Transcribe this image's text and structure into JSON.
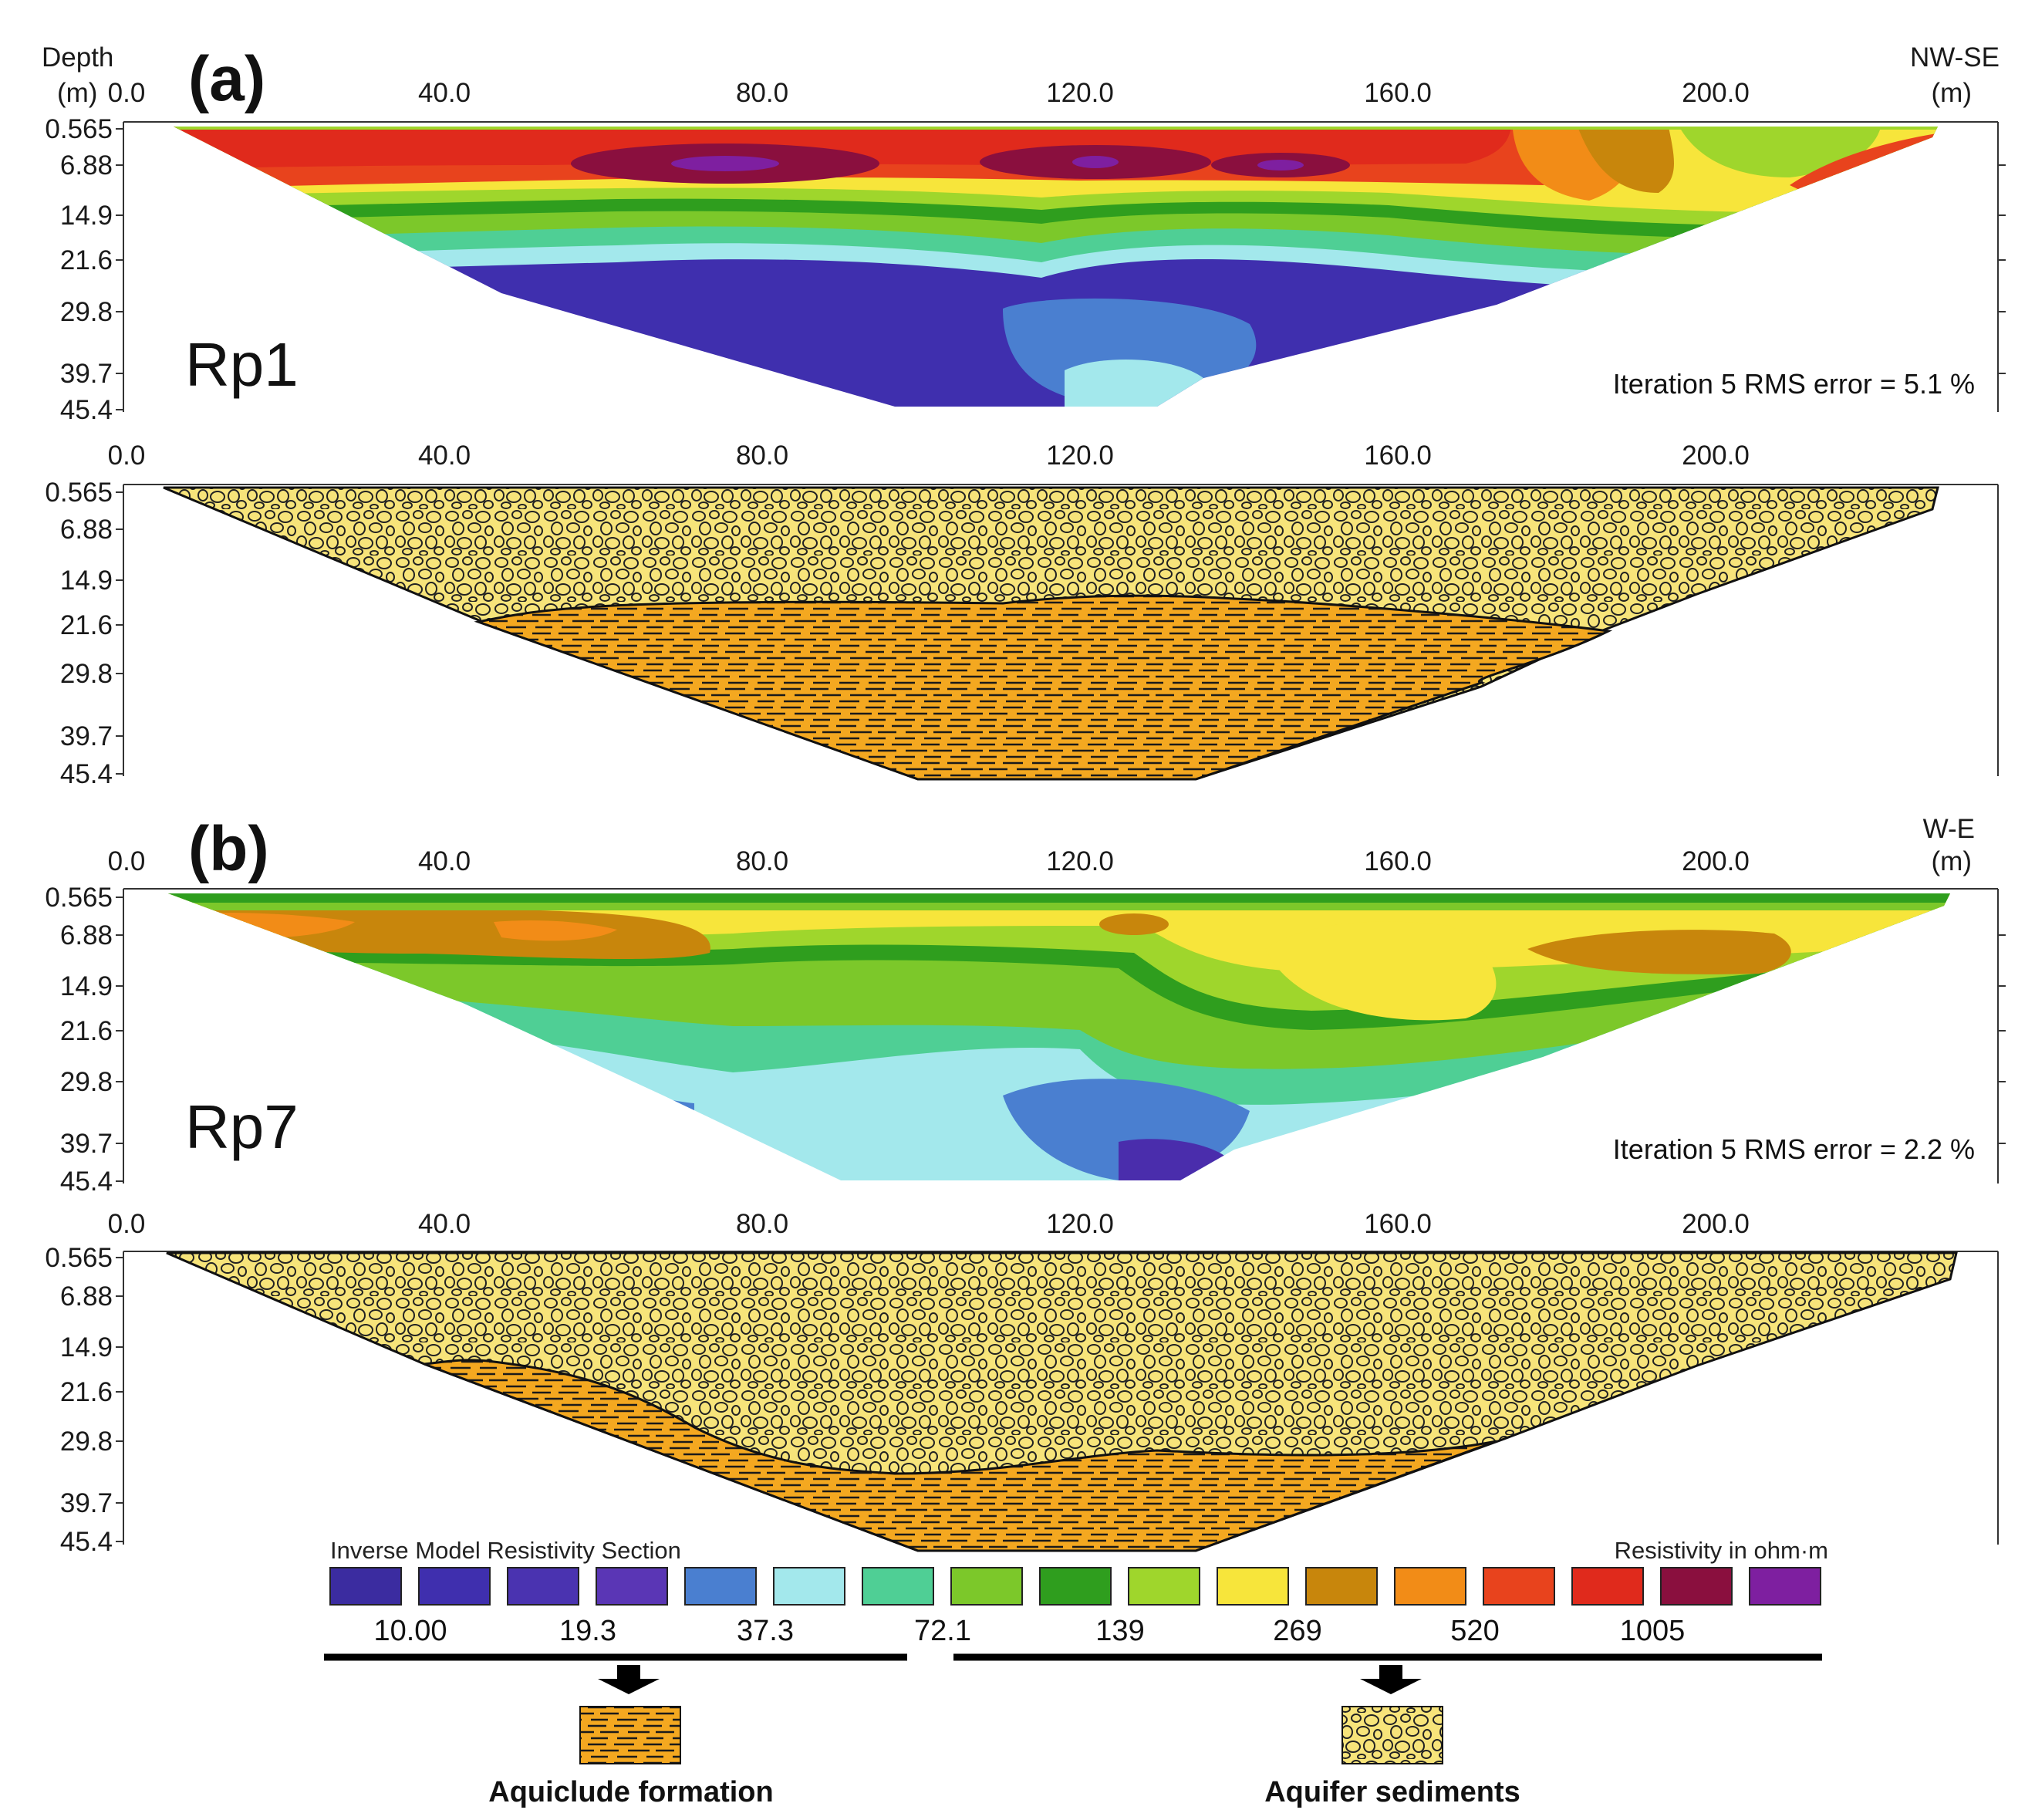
{
  "figure": {
    "panel_a": {
      "letter": "(a)",
      "profile_label": "Rp1",
      "direction": "NW-SE",
      "distance_unit": "(m)",
      "depth_title": "Depth",
      "depth_unit": "(m)",
      "rms_text": "Iteration 5 RMS error = 5.1 %"
    },
    "panel_b": {
      "letter": "(b)",
      "profile_label": "Rp7",
      "direction": "W-E",
      "distance_unit": "(m)",
      "rms_text": "Iteration 5 RMS error = 2.2 %"
    },
    "x_ticks": [
      "0.0",
      "40.0",
      "80.0",
      "120.0",
      "160.0",
      "200.0"
    ],
    "depth_ticks": [
      "0.565",
      "6.88",
      "14.9",
      "21.6",
      "29.8",
      "39.7",
      "45.4"
    ],
    "legend": {
      "title_left": "Inverse Model Resistivity Section",
      "title_right": "Resistivity in ohm·m",
      "swatches": [
        "#3b2ca0",
        "#3f2fae",
        "#4a33b0",
        "#5a36b5",
        "#4a7fd0",
        "#a3e8ec",
        "#4fcf95",
        "#7cc82a",
        "#2f9e1e",
        "#9fd62c",
        "#f7e53b",
        "#c8860c",
        "#f28c17",
        "#e8431d",
        "#e02a1c",
        "#8a0f3e",
        "#7e1fa0"
      ],
      "values": [
        "10.00",
        "19.3",
        "37.3",
        "72.1",
        "139",
        "269",
        "520",
        "1005"
      ],
      "aquiclude_label": "Aquiclude formation",
      "aquifer_label": "Aquifer sediments"
    },
    "colors": {
      "aquifer_fill": "#f7e47a",
      "aquiclude_fill": "#f4a820"
    }
  }
}
